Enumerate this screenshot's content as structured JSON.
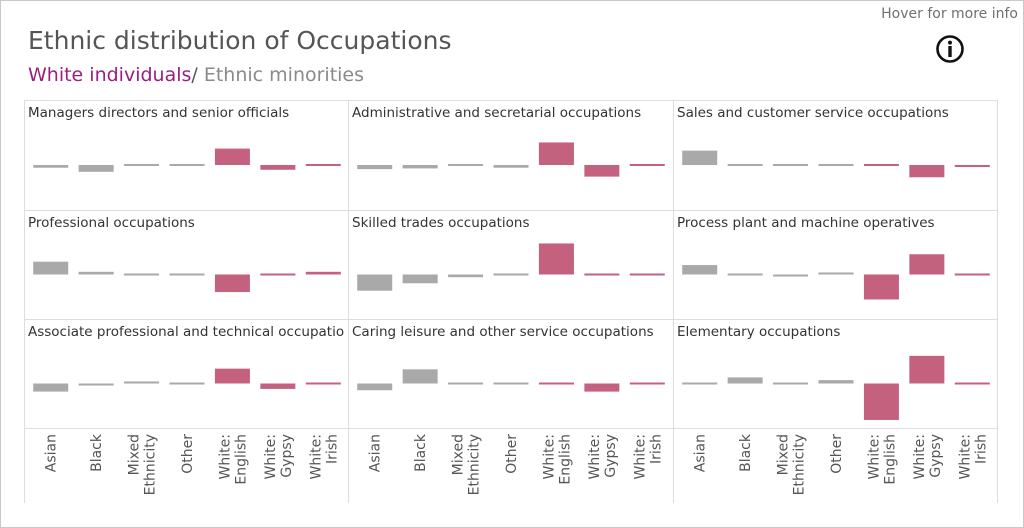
{
  "header": {
    "title": "Ethnic distribution of Occupations",
    "legend_white": "White individuals",
    "legend_sep": "/",
    "legend_minorities": " Ethnic minorities",
    "hover_info": "Hover for more info",
    "info_icon": "info-circle-icon"
  },
  "colors": {
    "white_group": "#c4617f",
    "minority_group": "#a9a9a9",
    "white_zero": "#c4617f",
    "legend_white": "#9a1f82"
  },
  "chart_data": {
    "type": "bar",
    "title": "Ethnic distribution of Occupations",
    "categories": [
      [
        "Asian"
      ],
      [
        "Black"
      ],
      [
        "Mixed",
        "Ethnicity"
      ],
      [
        "Other"
      ],
      [
        "White:",
        "English"
      ],
      [
        "White:",
        "Gypsy"
      ],
      [
        "White:",
        "Irish"
      ]
    ],
    "groups": [
      "minority",
      "minority",
      "minority",
      "minority",
      "white",
      "white",
      "white"
    ],
    "units": "relative deviation from average (approximate)",
    "ylim": [
      -6,
      6
    ],
    "panels": [
      {
        "title": "Managers directors and senior officials",
        "values": [
          -0.4,
          -1.0,
          -0.1,
          -0.1,
          2.4,
          -0.7,
          0.2
        ]
      },
      {
        "title": "Administrative and secretarial occupations",
        "values": [
          -0.6,
          -0.5,
          -0.1,
          -0.4,
          3.3,
          -1.7,
          -0.1
        ]
      },
      {
        "title": "Sales and customer service occupations",
        "values": [
          2.1,
          -0.1,
          0.1,
          -0.1,
          -0.1,
          -1.8,
          -0.3
        ]
      },
      {
        "title": "Professional occupations",
        "values": [
          1.9,
          0.4,
          0.1,
          0.1,
          -2.6,
          -0.1,
          0.4
        ]
      },
      {
        "title": "Skilled trades occupations",
        "values": [
          -2.4,
          -1.3,
          -0.4,
          -0.1,
          4.6,
          0.2,
          0.1
        ]
      },
      {
        "title": "Process plant and machine operatives",
        "values": [
          1.4,
          0.0,
          -0.3,
          0.3,
          -3.7,
          3.0,
          -0.1
        ]
      },
      {
        "title": "Associate professional and technical occupatio",
        "values": [
          -1.2,
          -0.3,
          0.3,
          -0.1,
          2.2,
          -0.8,
          0.2
        ]
      },
      {
        "title": "Caring leisure and other service occupations",
        "values": [
          -1.0,
          2.1,
          0.1,
          0.1,
          0.1,
          -1.2,
          0.2
        ]
      },
      {
        "title": "Elementary occupations",
        "values": [
          0.1,
          0.9,
          0.1,
          0.5,
          -5.4,
          4.1,
          -0.2
        ]
      }
    ]
  }
}
